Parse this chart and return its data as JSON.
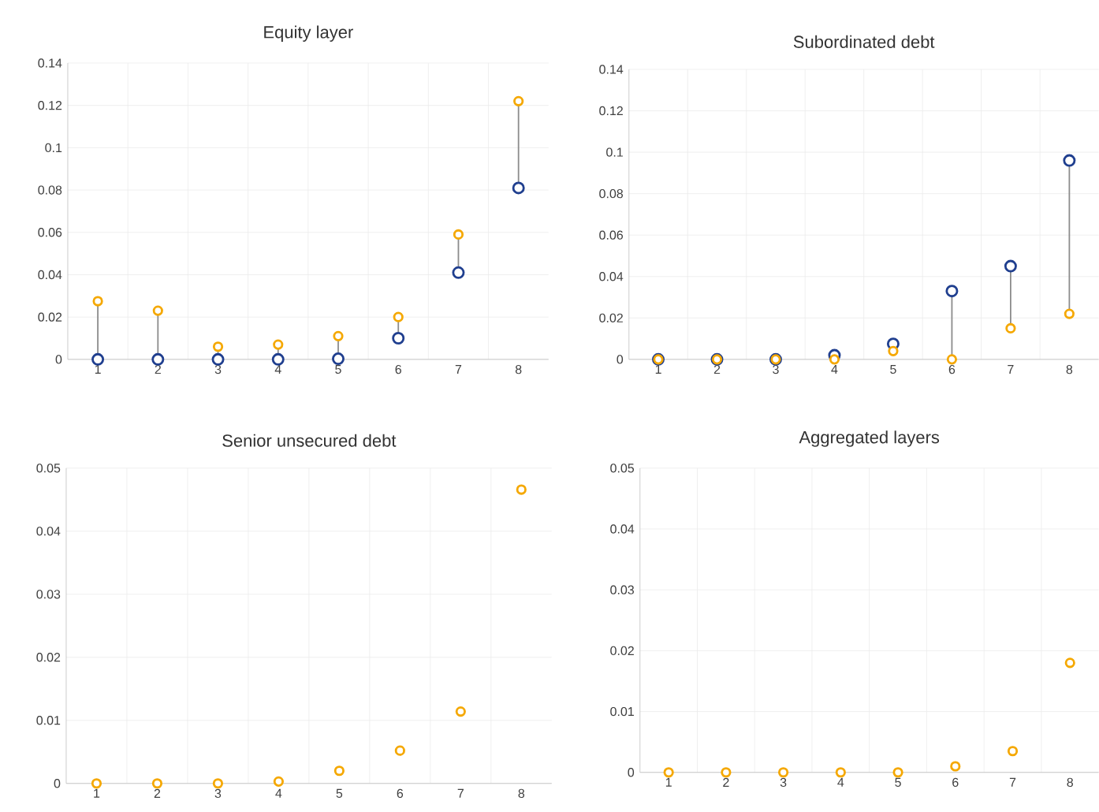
{
  "chart_data": [
    {
      "type": "scatter",
      "title": "Equity layer",
      "categories": [
        "1",
        "2",
        "3",
        "4",
        "5",
        "6",
        "7",
        "8"
      ],
      "ylim": [
        0,
        0.14
      ],
      "yticks": [
        0,
        0.02,
        0.04,
        0.06,
        0.08,
        0.1,
        0.12,
        0.14
      ],
      "grid": true,
      "marker": "circle",
      "series": [
        {
          "color": "#203f8f",
          "values": [
            0,
            0,
            0,
            0,
            0.0003,
            0.01,
            0.041,
            0.081
          ]
        },
        {
          "color": "#f5a800",
          "values": [
            0.0275,
            0.023,
            0.006,
            0.007,
            0.011,
            0.02,
            0.059,
            0.122
          ]
        }
      ]
    },
    {
      "type": "scatter",
      "title": "Subordinated debt",
      "categories": [
        "1",
        "2",
        "3",
        "4",
        "5",
        "6",
        "7",
        "8"
      ],
      "ylim": [
        0,
        0.14
      ],
      "yticks": [
        0,
        0.02,
        0.04,
        0.06,
        0.08,
        0.1,
        0.12,
        0.14
      ],
      "grid": true,
      "marker": "circle",
      "series": [
        {
          "color": "#203f8f",
          "values": [
            0,
            0,
            0,
            0.002,
            0.0075,
            0.033,
            0.045,
            0.096
          ]
        },
        {
          "color": "#f5a800",
          "values": [
            0,
            0,
            0,
            0,
            0.004,
            0,
            0.015,
            0.022
          ]
        }
      ]
    },
    {
      "type": "scatter",
      "title": "Senior unsecured debt",
      "categories": [
        "1",
        "2",
        "3",
        "4",
        "5",
        "6",
        "7",
        "8"
      ],
      "ylim": [
        0,
        0.05
      ],
      "yticks": [
        0,
        0.01,
        0.02,
        0.03,
        0.04,
        0.05
      ],
      "grid": true,
      "marker": "circle",
      "series": [
        {
          "color": "#f5a800",
          "values": [
            0,
            0,
            0,
            0.0003,
            0.002,
            0.0052,
            0.0114,
            0.0466
          ]
        }
      ]
    },
    {
      "type": "scatter",
      "title": "Aggregated layers",
      "categories": [
        "1",
        "2",
        "3",
        "4",
        "5",
        "6",
        "7",
        "8"
      ],
      "ylim": [
        0,
        0.05
      ],
      "yticks": [
        0,
        0.01,
        0.02,
        0.03,
        0.04,
        0.05
      ],
      "grid": true,
      "marker": "circle",
      "series": [
        {
          "color": "#f5a800",
          "values": [
            0,
            0,
            0,
            0,
            0,
            0.001,
            0.0035,
            0.018
          ]
        }
      ]
    }
  ]
}
